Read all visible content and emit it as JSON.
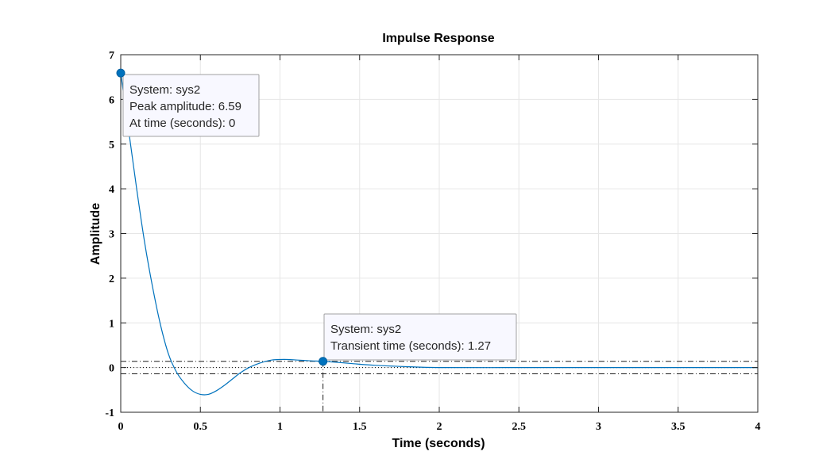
{
  "chart_data": {
    "type": "line",
    "title": "Impulse Response",
    "xlabel": "Time (seconds)",
    "ylabel": "Amplitude",
    "xlim": [
      0,
      4
    ],
    "ylim": [
      -1,
      7
    ],
    "grid": true,
    "x_ticks": [
      "0",
      "0.5",
      "1",
      "1.5",
      "2",
      "2.5",
      "3",
      "3.5",
      "4"
    ],
    "y_ticks": [
      "-1",
      "0",
      "1",
      "2",
      "3",
      "4",
      "5",
      "6",
      "7"
    ],
    "x_tick_values": [
      0,
      0.5,
      1,
      1.5,
      2,
      2.5,
      3,
      3.5,
      4
    ],
    "y_tick_values": [
      -1,
      0,
      1,
      2,
      3,
      4,
      5,
      6,
      7
    ],
    "series": [
      {
        "color": "#0072bd",
        "x": [
          0,
          0.05,
          0.1,
          0.15,
          0.2,
          0.25,
          0.3,
          0.35,
          0.4,
          0.45,
          0.5,
          0.55,
          0.6,
          0.65,
          0.7,
          0.75,
          0.8,
          0.85,
          0.9,
          0.95,
          1.0,
          1.05,
          1.1,
          1.15,
          1.2,
          1.27,
          1.35,
          1.45,
          1.6,
          1.8,
          2.0,
          2.5,
          3.0,
          3.5,
          4.0
        ],
        "y": [
          6.59,
          5.3,
          4.0,
          2.8,
          1.8,
          0.95,
          0.3,
          -0.1,
          -0.35,
          -0.52,
          -0.6,
          -0.6,
          -0.52,
          -0.4,
          -0.26,
          -0.12,
          -0.01,
          0.07,
          0.13,
          0.17,
          0.18,
          0.18,
          0.17,
          0.16,
          0.15,
          0.14,
          0.12,
          0.09,
          0.05,
          0.02,
          0.0,
          0.0,
          0.0,
          0.0,
          0.0
        ]
      }
    ],
    "steady_state": 0,
    "settling_band": [
      0.14,
      -0.14
    ],
    "settling_time_marker": 1.27,
    "datatips": [
      {
        "x": 0,
        "y": 6.59,
        "lines": [
          "System: sys2",
          "Peak amplitude: 6.59",
          "At time (seconds): 0"
        ]
      },
      {
        "x": 1.27,
        "y": 0.14,
        "lines": [
          "System: sys2",
          "Transient time (seconds): 1.27"
        ]
      }
    ]
  }
}
